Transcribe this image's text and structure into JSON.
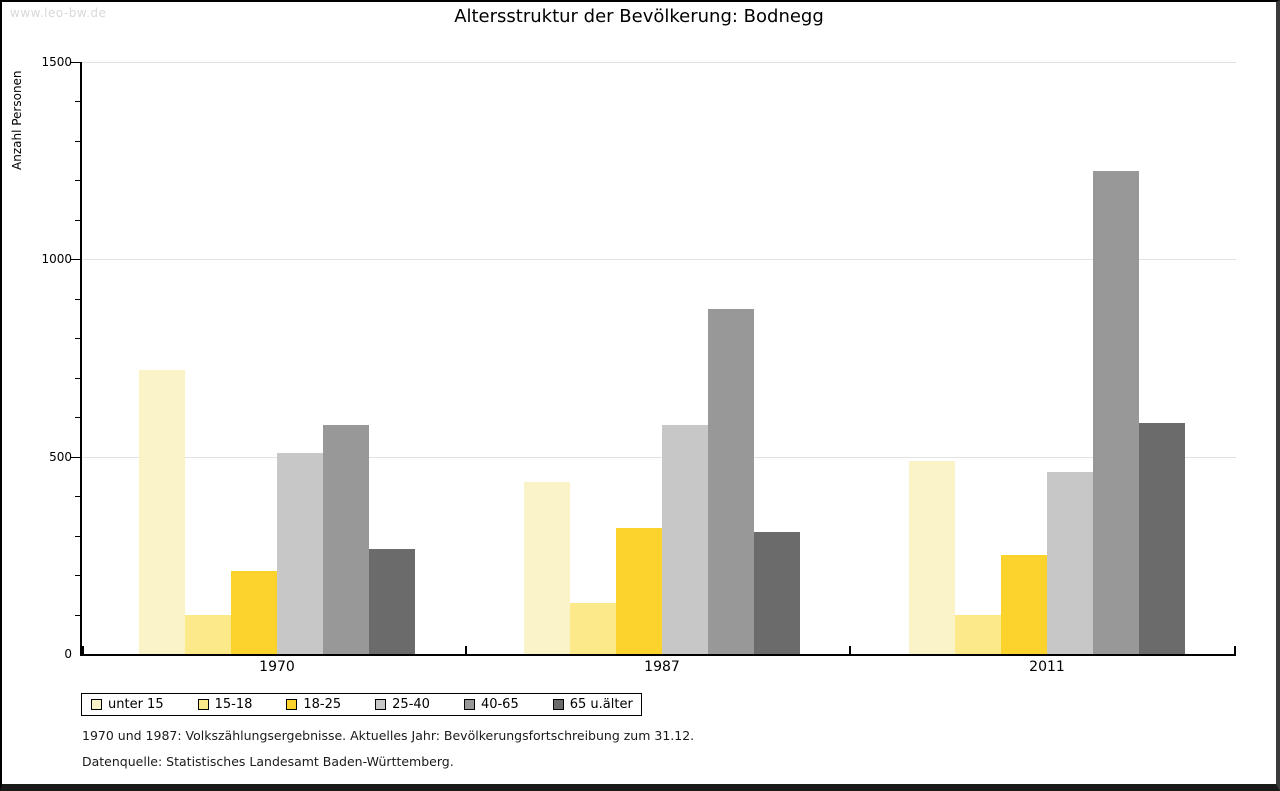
{
  "watermark": "www.leo-bw.de",
  "title": "Altersstruktur der Bevölkerung: Bodnegg",
  "chart_data": {
    "type": "bar",
    "title": "Altersstruktur der Bevölkerung: Bodnegg",
    "xlabel": "",
    "ylabel": "Anzahl Personen",
    "ylim": [
      0,
      1500
    ],
    "ytick_major_step": 500,
    "ytick_minor_step": 100,
    "ytick_labels": [
      "0",
      "500",
      "1000",
      "1500"
    ],
    "grid": "horizontal gridlines at major ticks, light gray",
    "legend_position": "bottom-left, boxed",
    "categories": [
      "1970",
      "1987",
      "2011"
    ],
    "series": [
      {
        "name": "unter 15",
        "color": "#FAF3C8",
        "values": [
          720,
          435,
          490
        ]
      },
      {
        "name": "15-18",
        "color": "#FCE98A",
        "values": [
          100,
          130,
          100
        ]
      },
      {
        "name": "18-25",
        "color": "#FCD32D",
        "values": [
          210,
          320,
          250
        ]
      },
      {
        "name": "25-40",
        "color": "#C7C7C7",
        "values": [
          510,
          580,
          460
        ]
      },
      {
        "name": "40-65",
        "color": "#989898",
        "values": [
          580,
          875,
          1225
        ]
      },
      {
        "name": "65 u.älter",
        "color": "#6B6B6B",
        "values": [
          265,
          310,
          585
        ]
      }
    ]
  },
  "footnotes": {
    "line1": "1970 und 1987: Volkszählungsergebnisse. Aktuelles Jahr: Bevölkerungsfortschreibung zum 31.12.",
    "line2": "Datenquelle: Statistisches Landesamt Baden-Württemberg."
  }
}
